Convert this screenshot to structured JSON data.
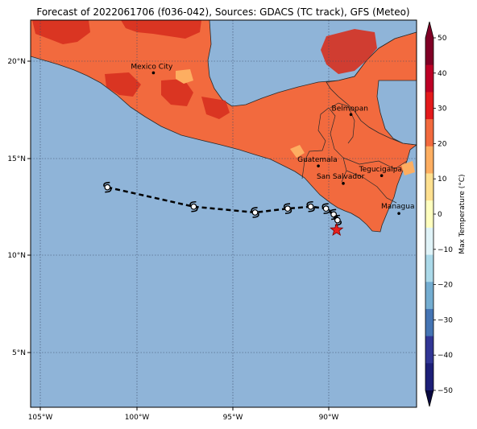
{
  "title": "Forecast of 2022061706 (f036-042), Sources: GDACS (TC track), GFS (Meteo)",
  "colors": {
    "ocean": "#8fb4d8",
    "land_main": "#f26a3e",
    "land_hot": "#d7301f",
    "land_warm": "#fdae61",
    "border": "#2a2a2a",
    "grid": "#3b4a66",
    "track": "#000000",
    "star": "#e8201c"
  },
  "map": {
    "lon_range": [
      -105.5,
      -84.5
    ],
    "lat_range": [
      2.5,
      22.2
    ],
    "x_ticks": [
      {
        "value": -105,
        "label": "105°W"
      },
      {
        "value": -100,
        "label": "100°W"
      },
      {
        "value": -95,
        "label": "95°W"
      },
      {
        "value": -90,
        "label": "90°W"
      }
    ],
    "y_ticks": [
      {
        "value": 20,
        "label": "20°N"
      },
      {
        "value": 15,
        "label": "15°N"
      },
      {
        "value": 10,
        "label": "10°N"
      },
      {
        "value": 5,
        "label": "5°N"
      }
    ]
  },
  "cities": [
    {
      "name": "Mexico City",
      "lon": -99.1,
      "lat": 19.4,
      "label_dx": -28,
      "label_dy": -5
    },
    {
      "name": "Belmopan",
      "lon": -88.8,
      "lat": 17.25,
      "label_dx": -24,
      "label_dy": -5
    },
    {
      "name": "Guatemala",
      "lon": -90.5,
      "lat": 14.6,
      "label_dx": -26,
      "label_dy": -5
    },
    {
      "name": "San Salvador",
      "lon": -89.2,
      "lat": 13.7,
      "label_dx": -33,
      "label_dy": -6
    },
    {
      "name": "Tegucigalpa",
      "lon": -87.2,
      "lat": 14.1,
      "label_dx": -28,
      "label_dy": -5
    },
    {
      "name": "Managua",
      "lon": -86.3,
      "lat": 12.15,
      "label_dx": -22,
      "label_dy": -6
    }
  ],
  "track": [
    {
      "lon": -101.5,
      "lat": 13.5
    },
    {
      "lon": -97.0,
      "lat": 12.5
    },
    {
      "lon": -93.8,
      "lat": 12.2
    },
    {
      "lon": -92.1,
      "lat": 12.4
    },
    {
      "lon": -90.9,
      "lat": 12.5
    },
    {
      "lon": -90.1,
      "lat": 12.4
    },
    {
      "lon": -89.7,
      "lat": 12.1
    },
    {
      "lon": -89.5,
      "lat": 11.8
    }
  ],
  "current_position": {
    "lon": -89.55,
    "lat": 11.3
  },
  "colorbar": {
    "label": "Max Temperature (°C)",
    "min": -50,
    "max": 50,
    "ticks": [
      "50",
      "40",
      "30",
      "20",
      "10",
      "0",
      "−10",
      "−20",
      "−30",
      "−40",
      "−50"
    ],
    "bands": [
      "#800026",
      "#bd0026",
      "#e31a1c",
      "#f26a3e",
      "#fdae61",
      "#fee090",
      "#ffffbf",
      "#e0f3f8",
      "#abd9e9",
      "#74add1",
      "#4575b4",
      "#313695",
      "#1d1f78"
    ]
  }
}
